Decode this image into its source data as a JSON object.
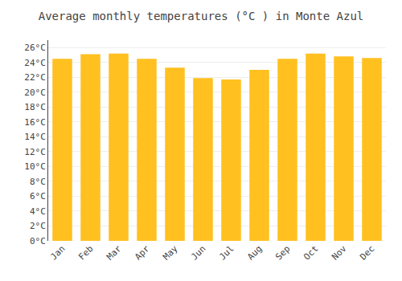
{
  "chart_data": {
    "type": "bar",
    "title": "Average monthly temperatures (°C ) in Monte Azul",
    "categories": [
      "Jan",
      "Feb",
      "Mar",
      "Apr",
      "May",
      "Jun",
      "Jul",
      "Aug",
      "Sep",
      "Oct",
      "Nov",
      "Dec"
    ],
    "values": [
      24.5,
      25.1,
      25.2,
      24.5,
      23.3,
      21.9,
      21.7,
      23.0,
      24.5,
      25.2,
      24.8,
      24.6
    ],
    "color": "#FFC020",
    "ylim": [
      0,
      27
    ],
    "yticks": [
      {
        "value": 0,
        "label": "0°C"
      },
      {
        "value": 2,
        "label": "2°C"
      },
      {
        "value": 4,
        "label": "4°C"
      },
      {
        "value": 6,
        "label": "6°C"
      },
      {
        "value": 8,
        "label": "8°C"
      },
      {
        "value": 10,
        "label": "10°C"
      },
      {
        "value": 12,
        "label": "12°C"
      },
      {
        "value": 14,
        "label": "14°C"
      },
      {
        "value": 16,
        "label": "16°C"
      },
      {
        "value": 18,
        "label": "18°C"
      },
      {
        "value": 20,
        "label": "20°C"
      },
      {
        "value": 22,
        "label": "22°C"
      },
      {
        "value": 24,
        "label": "24°C"
      },
      {
        "value": 26,
        "label": "26°C"
      }
    ],
    "grid": true
  }
}
